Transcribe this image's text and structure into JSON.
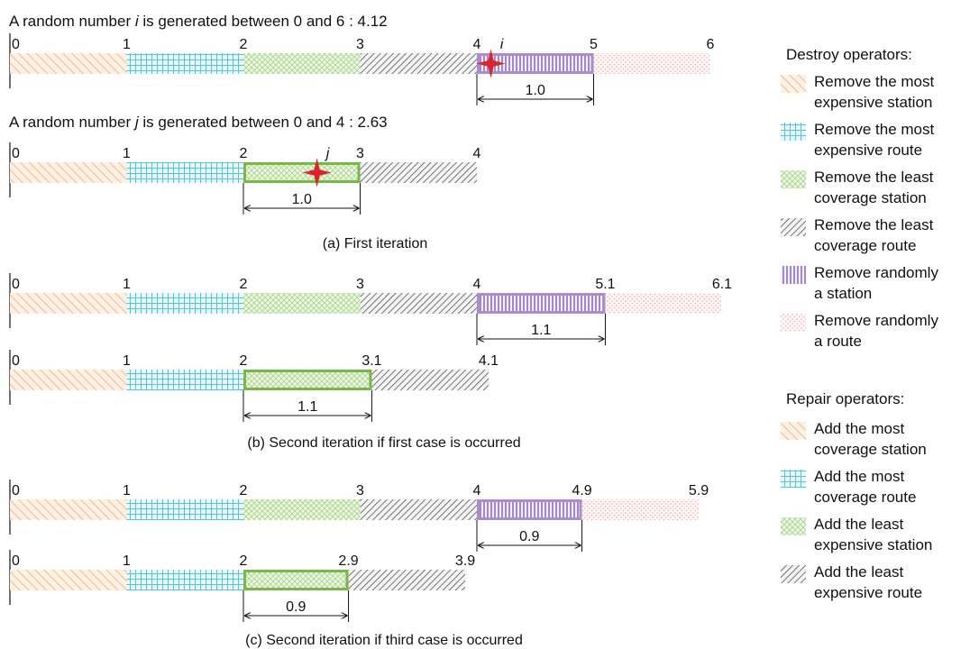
{
  "header_i": {
    "prefix": "A random number ",
    "var": "i",
    "suffix": " is generated between 0 and 6 : 4.12"
  },
  "header_j": {
    "prefix": "A random number ",
    "var": "j",
    "suffix": " is generated between 0 and 4 : 2.63"
  },
  "captions": {
    "a": "(a) First iteration",
    "b": "(b) Second iteration if first case is occurred",
    "c": "(c) Second iteration if third case is occurred"
  },
  "colors": {
    "orange": "#f5b887",
    "cyan": "#59c3d6",
    "green": "#a9d58a",
    "dark": "#404040",
    "purple": "#8e6fb8",
    "pink": "#f2a7a7",
    "green_border": "#7ab648",
    "purple_border": "#a98dd0",
    "star": "#d9262c"
  },
  "bars": [
    {
      "id": "a-destroy",
      "ticks": [
        "0",
        "1",
        "2",
        "3",
        "4",
        "5",
        "6"
      ],
      "segments": [
        {
          "pattern": "orange",
          "start": 0,
          "end": 1
        },
        {
          "pattern": "cyan",
          "start": 1,
          "end": 2
        },
        {
          "pattern": "green",
          "start": 2,
          "end": 3
        },
        {
          "pattern": "dark",
          "start": 3,
          "end": 4
        },
        {
          "pattern": "purple",
          "start": 4,
          "end": 5,
          "highlight": "purple_border"
        },
        {
          "pattern": "pink",
          "start": 5,
          "end": 6
        }
      ],
      "ticks_at": [
        0,
        1,
        2,
        3,
        4,
        5,
        6
      ],
      "dimension": {
        "start": 4,
        "end": 5,
        "label": "1.0"
      },
      "marker": {
        "value": 4.12,
        "label": "i"
      }
    },
    {
      "id": "a-repair",
      "ticks": [
        "0",
        "1",
        "2",
        "3",
        "4"
      ],
      "segments": [
        {
          "pattern": "orange",
          "start": 0,
          "end": 1
        },
        {
          "pattern": "cyan",
          "start": 1,
          "end": 2
        },
        {
          "pattern": "green",
          "start": 2,
          "end": 3,
          "highlight": "green_border"
        },
        {
          "pattern": "dark",
          "start": 3,
          "end": 4
        }
      ],
      "ticks_at": [
        0,
        1,
        2,
        3,
        4
      ],
      "dimension": {
        "start": 2,
        "end": 3,
        "label": "1.0"
      },
      "marker": {
        "value": 2.63,
        "label": "j"
      }
    },
    {
      "id": "b-destroy",
      "ticks": [
        "0",
        "1",
        "2",
        "3",
        "4",
        "5.1",
        "6.1"
      ],
      "segments": [
        {
          "pattern": "orange",
          "start": 0,
          "end": 1
        },
        {
          "pattern": "cyan",
          "start": 1,
          "end": 2
        },
        {
          "pattern": "green",
          "start": 2,
          "end": 3
        },
        {
          "pattern": "dark",
          "start": 3,
          "end": 4
        },
        {
          "pattern": "purple",
          "start": 4,
          "end": 5.1,
          "highlight": "purple_border"
        },
        {
          "pattern": "pink",
          "start": 5.1,
          "end": 6.1
        }
      ],
      "ticks_at": [
        0,
        1,
        2,
        3,
        4,
        5.1,
        6.1
      ],
      "dimension": {
        "start": 4,
        "end": 5.1,
        "label": "1.1"
      }
    },
    {
      "id": "b-repair",
      "ticks": [
        "0",
        "1",
        "2",
        "3.1",
        "4.1"
      ],
      "segments": [
        {
          "pattern": "orange",
          "start": 0,
          "end": 1
        },
        {
          "pattern": "cyan",
          "start": 1,
          "end": 2
        },
        {
          "pattern": "green",
          "start": 2,
          "end": 3.1,
          "highlight": "green_border"
        },
        {
          "pattern": "dark",
          "start": 3.1,
          "end": 4.1
        }
      ],
      "ticks_at": [
        0,
        1,
        2,
        3.1,
        4.1
      ],
      "dimension": {
        "start": 2,
        "end": 3.1,
        "label": "1.1"
      }
    },
    {
      "id": "c-destroy",
      "ticks": [
        "0",
        "1",
        "2",
        "3",
        "4",
        "4.9",
        "5.9"
      ],
      "segments": [
        {
          "pattern": "orange",
          "start": 0,
          "end": 1
        },
        {
          "pattern": "cyan",
          "start": 1,
          "end": 2
        },
        {
          "pattern": "green",
          "start": 2,
          "end": 3
        },
        {
          "pattern": "dark",
          "start": 3,
          "end": 4
        },
        {
          "pattern": "purple",
          "start": 4,
          "end": 4.9,
          "highlight": "purple_border"
        },
        {
          "pattern": "pink",
          "start": 4.9,
          "end": 5.9
        }
      ],
      "ticks_at": [
        0,
        1,
        2,
        3,
        4,
        4.9,
        5.9
      ],
      "dimension": {
        "start": 4,
        "end": 4.9,
        "label": "0.9"
      }
    },
    {
      "id": "c-repair",
      "ticks": [
        "0",
        "1",
        "2",
        "2.9",
        "3.9"
      ],
      "segments": [
        {
          "pattern": "orange",
          "start": 0,
          "end": 1
        },
        {
          "pattern": "cyan",
          "start": 1,
          "end": 2
        },
        {
          "pattern": "green",
          "start": 2,
          "end": 2.9,
          "highlight": "green_border"
        },
        {
          "pattern": "dark",
          "start": 2.9,
          "end": 3.9
        }
      ],
      "ticks_at": [
        0,
        1,
        2,
        2.9,
        3.9
      ],
      "dimension": {
        "start": 2,
        "end": 2.9,
        "label": "0.9"
      }
    }
  ],
  "legend": {
    "destroy_title": "Destroy operators:",
    "destroy": [
      {
        "pattern": "orange",
        "lines": [
          "Remove the most",
          "expensive station"
        ]
      },
      {
        "pattern": "cyan",
        "lines": [
          "Remove the most",
          "expensive route"
        ]
      },
      {
        "pattern": "green",
        "lines": [
          "Remove the least",
          "coverage station"
        ]
      },
      {
        "pattern": "dark",
        "lines": [
          "Remove the least",
          "coverage route"
        ]
      },
      {
        "pattern": "purple",
        "lines": [
          "Remove randomly",
          "a station"
        ]
      },
      {
        "pattern": "pink",
        "lines": [
          "Remove randomly",
          "a route"
        ]
      }
    ],
    "repair_title": "Repair operators:",
    "repair": [
      {
        "pattern": "orange",
        "lines": [
          "Add the most",
          "coverage station"
        ]
      },
      {
        "pattern": "cyan",
        "lines": [
          "Add the most",
          "coverage route"
        ]
      },
      {
        "pattern": "green",
        "lines": [
          "Add the least",
          "expensive station"
        ]
      },
      {
        "pattern": "dark",
        "lines": [
          "Add the least",
          "expensive route"
        ]
      }
    ]
  }
}
